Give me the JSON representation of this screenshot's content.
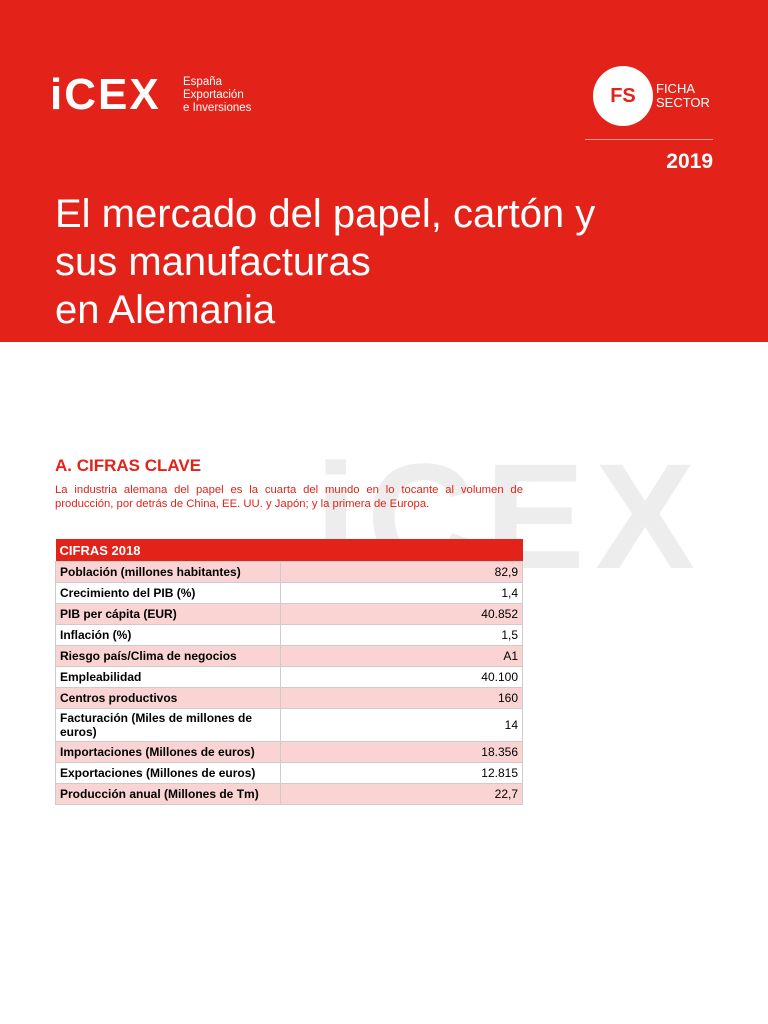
{
  "header": {
    "logo": "iCEX",
    "logo_subtitle": [
      "España",
      "Exportación",
      "e Inversiones"
    ],
    "badge": "FS",
    "badge_label": [
      "FICHA",
      "SECTOR"
    ],
    "year": "2019",
    "title": [
      "El mercado del papel, cartón y",
      "sus manufacturas",
      "en Alemania"
    ]
  },
  "section": {
    "heading": "A. CIFRAS CLAVE",
    "text": "La industria alemana del papel es la cuarta del mundo en lo tocante al volumen de producción, por detrás de China, EE. UU. y Japón; y la primera de Europa."
  },
  "table": {
    "title": "CIFRAS 2018",
    "rows": [
      [
        "Población (millones habitantes)",
        "82,9"
      ],
      [
        "Crecimiento del PIB (%)",
        "1,4"
      ],
      [
        "PIB per cápita (EUR)",
        "40.852"
      ],
      [
        "Inflación (%)",
        "1,5"
      ],
      [
        "Riesgo país/Clima de negocios",
        "A1"
      ],
      [
        "Empleabilidad",
        "40.100"
      ],
      [
        "Centros productivos",
        "160"
      ],
      [
        "Facturación (Miles de millones de euros)",
        "14"
      ],
      [
        "Importaciones (Millones de euros)",
        "18.356"
      ],
      [
        "Exportaciones (Millones de euros)",
        "12.815"
      ],
      [
        "Producción anual (Millones de Tm)",
        "22,7"
      ]
    ]
  }
}
